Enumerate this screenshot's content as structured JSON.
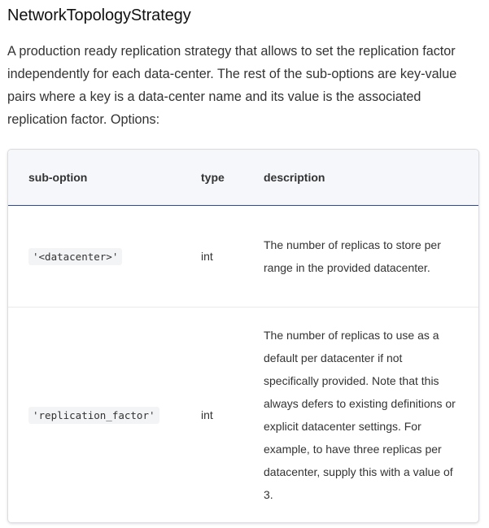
{
  "section": {
    "title": "NetworkTopologyStrategy",
    "description": "A production ready replication strategy that allows to set the replication factor independently for each data-center. The rest of the sub-options are key-value pairs where a key is a data-center name and its value is the associated replication factor. Options:"
  },
  "table": {
    "headers": [
      "sub-option",
      "type",
      "description"
    ],
    "rows": [
      {
        "suboption": "'<datacenter>'",
        "type": "int",
        "description": "The number of replicas to store per range in the provided datacenter."
      },
      {
        "suboption": "'replication_factor'",
        "type": "int",
        "description": "The number of replicas to use as a default per datacenter if not specifically provided. Note that this always defers to existing definitions or explicit datacenter settings. For example, to have three replicas per datacenter, supply this with a value of 3."
      }
    ]
  }
}
